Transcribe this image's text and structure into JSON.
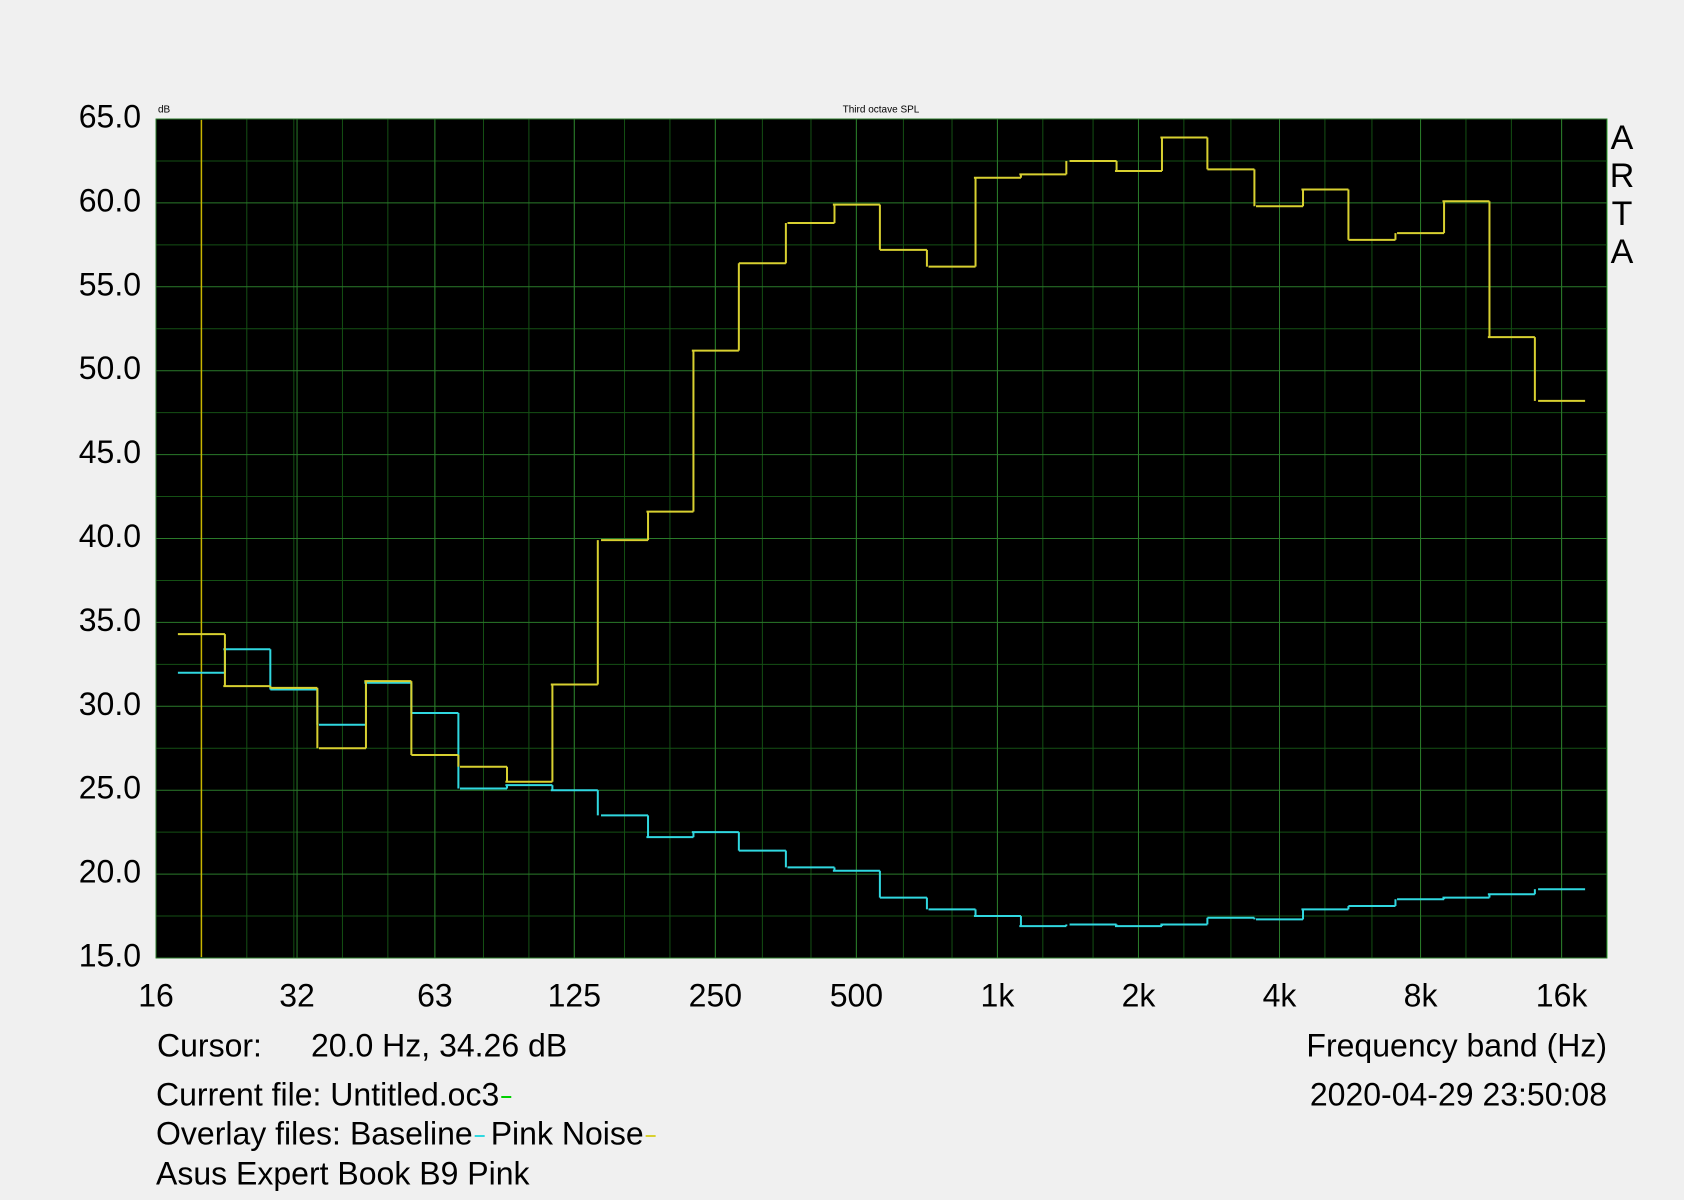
{
  "chart_data": {
    "type": "step",
    "title": "Third octave SPL",
    "y_unit": "dB",
    "x_label": "Frequency band (Hz)",
    "brand": [
      "A",
      "R",
      "T",
      "A"
    ],
    "timestamp": "2020-04-29  23:50:08",
    "cursor": {
      "label": "Cursor:",
      "text": "20.0 Hz, 34.26 dB",
      "x": 20,
      "color": "#c8b400"
    },
    "current_file": {
      "text": "Current file: Untitled.oc3",
      "color": "#00d000"
    },
    "overlay_label": "Overlay files:",
    "note": "Asus Expert Book B9 Pink",
    "log_x": true,
    "grid": true,
    "xlim": [
      16,
      20000
    ],
    "xticks": [
      16,
      32,
      63,
      125,
      250,
      500,
      {
        "value": 1000,
        "label": "1k"
      },
      {
        "value": 2000,
        "label": "2k"
      },
      {
        "value": 4000,
        "label": "4k"
      },
      {
        "value": 8000,
        "label": "8k"
      },
      {
        "value": 16000,
        "label": "16k"
      }
    ],
    "ylim": [
      15,
      65
    ],
    "yticks": [
      {
        "value": 15,
        "label": "15.0"
      },
      {
        "value": 20,
        "label": "20.0"
      },
      {
        "value": 25,
        "label": "25.0"
      },
      {
        "value": 30,
        "label": "30.0"
      },
      {
        "value": 35,
        "label": "35.0"
      },
      {
        "value": 40,
        "label": "40.0"
      },
      {
        "value": 45,
        "label": "45.0"
      },
      {
        "value": 50,
        "label": "50.0"
      },
      {
        "value": 55,
        "label": "55.0"
      },
      {
        "value": 60,
        "label": "60.0"
      },
      {
        "value": 65,
        "label": "65.0"
      }
    ],
    "yminorticks": [
      17.5,
      22.5,
      27.5,
      32.5,
      37.5,
      42.5,
      47.5,
      52.5,
      57.5,
      62.5
    ],
    "x": [
      20,
      25,
      31.5,
      40,
      50,
      63,
      80,
      100,
      125,
      160,
      200,
      250,
      315,
      400,
      500,
      630,
      800,
      1000,
      1250,
      1600,
      2000,
      2500,
      3150,
      4000,
      5000,
      6300,
      8000,
      10000,
      12500,
      16000
    ],
    "series": [
      {
        "name": "Baseline",
        "color": "#30d8e0",
        "values": [
          32.0,
          33.4,
          31.0,
          28.9,
          31.4,
          29.6,
          25.1,
          25.3,
          25.0,
          23.5,
          22.2,
          22.5,
          21.4,
          20.4,
          20.2,
          18.6,
          17.9,
          17.5,
          16.9,
          17.0,
          16.9,
          17.0,
          17.4,
          17.3,
          17.9,
          18.1,
          18.5,
          18.6,
          18.8,
          19.1
        ]
      },
      {
        "name": "Pink Noise",
        "color": "#d8d030",
        "values": [
          34.3,
          31.2,
          31.1,
          27.5,
          31.5,
          27.1,
          26.4,
          25.5,
          31.3,
          39.9,
          41.6,
          51.2,
          56.4,
          58.8,
          59.9,
          57.2,
          56.2,
          61.5,
          61.7,
          62.5,
          61.9,
          63.9,
          62.0,
          59.8,
          60.8,
          57.8,
          58.2,
          60.1,
          52.0,
          48.2
        ]
      }
    ]
  }
}
